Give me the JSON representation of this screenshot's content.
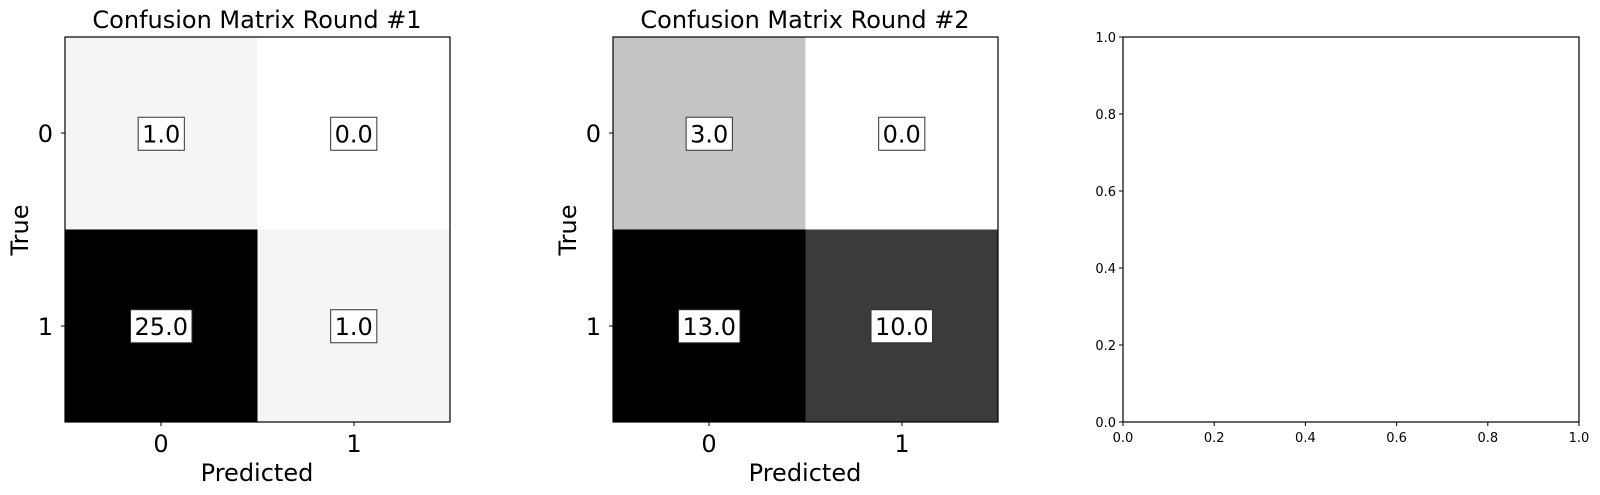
{
  "chart_data": [
    {
      "type": "heatmap",
      "title": "Confusion Matrix Round #1",
      "xlabel": "Predicted",
      "ylabel": "True",
      "xticks": [
        "0",
        "1"
      ],
      "yticks": [
        "0",
        "1"
      ],
      "colormap": "grayscale (white = low, black = high)",
      "values": [
        [
          1.0,
          0.0
        ],
        [
          25.0,
          1.0
        ]
      ],
      "labels": [
        [
          "1.0",
          "0.0"
        ],
        [
          "25.0",
          "1.0"
        ]
      ]
    },
    {
      "type": "heatmap",
      "title": "Confusion Matrix Round #2",
      "xlabel": "Predicted",
      "ylabel": "True",
      "xticks": [
        "0",
        "1"
      ],
      "yticks": [
        "0",
        "1"
      ],
      "colormap": "grayscale (white = low, black = high)",
      "values": [
        [
          3.0,
          0.0
        ],
        [
          13.0,
          10.0
        ]
      ],
      "labels": [
        [
          "3.0",
          "0.0"
        ],
        [
          "13.0",
          "10.0"
        ]
      ]
    },
    {
      "type": "line",
      "title": "",
      "xlabel": "",
      "ylabel": "",
      "series": [],
      "xlim": [
        0.0,
        1.0
      ],
      "ylim": [
        0.0,
        1.0
      ],
      "xticks": [
        "0.0",
        "0.2",
        "0.4",
        "0.6",
        "0.8",
        "1.0"
      ],
      "yticks": [
        "0.0",
        "0.2",
        "0.4",
        "0.6",
        "0.8",
        "1.0"
      ]
    }
  ]
}
